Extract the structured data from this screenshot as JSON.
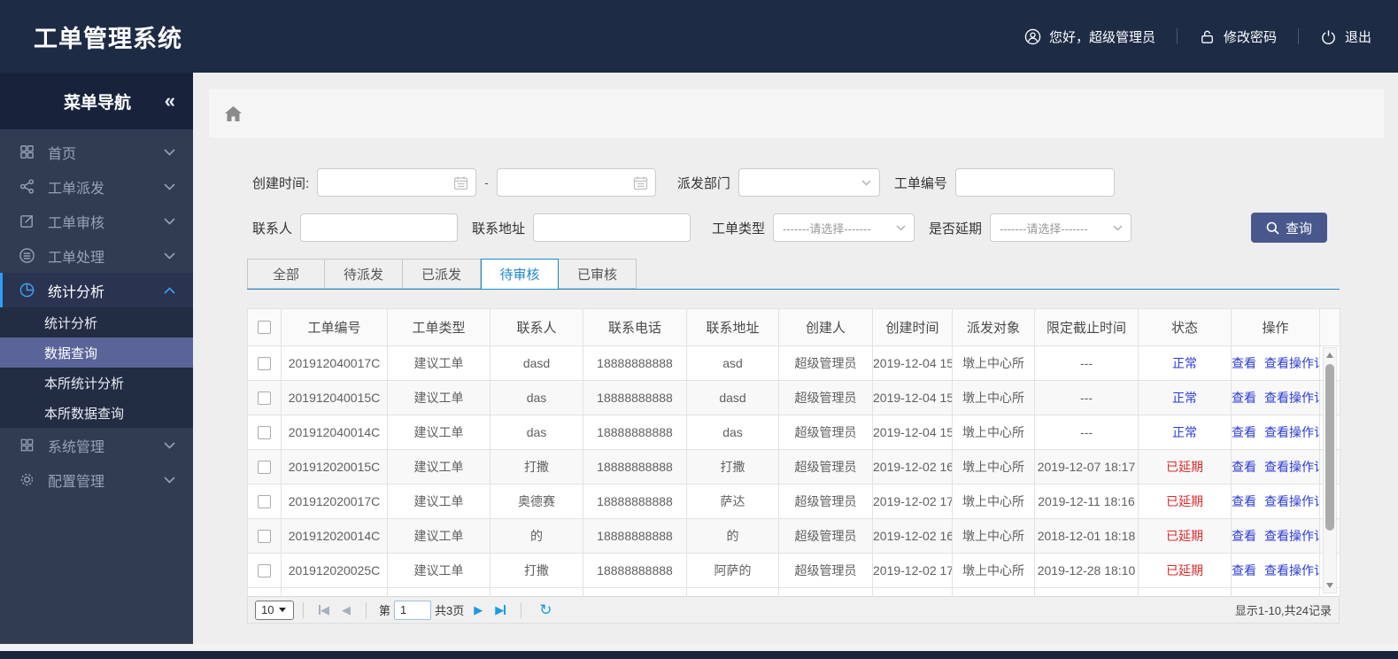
{
  "app": {
    "title": "工单管理系统"
  },
  "header": {
    "greeting": "您好，超级管理员",
    "change_password": "修改密码",
    "logout": "退出"
  },
  "sidebar": {
    "title": "菜单导航",
    "collapse_icon": "«",
    "items": [
      {
        "label": "首页"
      },
      {
        "label": "工单派发"
      },
      {
        "label": "工单审核"
      },
      {
        "label": "工单处理"
      },
      {
        "label": "统计分析",
        "active": true
      },
      {
        "label": "系统管理"
      },
      {
        "label": "配置管理"
      }
    ],
    "submenu": [
      {
        "label": "统计分析",
        "selected": false
      },
      {
        "label": "数据查询",
        "selected": true
      },
      {
        "label": "本所统计分析",
        "selected": false
      },
      {
        "label": "本所数据查询",
        "selected": false
      }
    ]
  },
  "filters": {
    "create_time_label": "创建时间:",
    "range_separator": "-",
    "dispatch_dept_label": "派发部门",
    "order_no_label": "工单编号",
    "contact_label": "联系人",
    "address_label": "联系地址",
    "order_type_label": "工单类型",
    "delay_label": "是否延期",
    "select_placeholder": "-------请选择-------",
    "search_button": "查询"
  },
  "tabs": [
    {
      "label": "全部",
      "active": false
    },
    {
      "label": "待派发",
      "active": false
    },
    {
      "label": "已派发",
      "active": false
    },
    {
      "label": "待审核",
      "active": true
    },
    {
      "label": "已审核",
      "active": false
    }
  ],
  "table": {
    "columns": [
      "工单编号",
      "工单类型",
      "联系人",
      "联系电话",
      "联系地址",
      "创建人",
      "创建时间",
      "派发对象",
      "限定截止时间",
      "状态",
      "操作"
    ],
    "action_labels": [
      "查看",
      "查看操作记录"
    ],
    "rows": [
      {
        "order_no": "201912040017C",
        "order_type": "建议工单",
        "contact": "dasd",
        "phone": "18888888888",
        "address": "asd",
        "creator": "超级管理员",
        "created": "2019-12-04 15",
        "target": "墩上中心所",
        "deadline": "---",
        "status": "正常",
        "status_type": "normal"
      },
      {
        "order_no": "201912040015C",
        "order_type": "建议工单",
        "contact": "das",
        "phone": "18888888888",
        "address": "dasd",
        "creator": "超级管理员",
        "created": "2019-12-04 15",
        "target": "墩上中心所",
        "deadline": "---",
        "status": "正常",
        "status_type": "normal"
      },
      {
        "order_no": "201912040014C",
        "order_type": "建议工单",
        "contact": "das",
        "phone": "18888888888",
        "address": "das",
        "creator": "超级管理员",
        "created": "2019-12-04 15",
        "target": "墩上中心所",
        "deadline": "---",
        "status": "正常",
        "status_type": "normal"
      },
      {
        "order_no": "201912020015C",
        "order_type": "建议工单",
        "contact": "打撒",
        "phone": "18888888888",
        "address": "打撒",
        "creator": "超级管理员",
        "created": "2019-12-02 16",
        "target": "墩上中心所",
        "deadline": "2019-12-07 18:17",
        "status": "已延期",
        "status_type": "delayed"
      },
      {
        "order_no": "201912020017C",
        "order_type": "建议工单",
        "contact": "奥德赛",
        "phone": "18888888888",
        "address": "萨达",
        "creator": "超级管理员",
        "created": "2019-12-02 17",
        "target": "墩上中心所",
        "deadline": "2019-12-11 18:16",
        "status": "已延期",
        "status_type": "delayed"
      },
      {
        "order_no": "201912020014C",
        "order_type": "建议工单",
        "contact": "的",
        "phone": "18888888888",
        "address": "的",
        "creator": "超级管理员",
        "created": "2019-12-02 16",
        "target": "墩上中心所",
        "deadline": "2018-12-01 18:18",
        "status": "已延期",
        "status_type": "delayed"
      },
      {
        "order_no": "201912020025C",
        "order_type": "建议工单",
        "contact": "打撒",
        "phone": "18888888888",
        "address": "阿萨的",
        "creator": "超级管理员",
        "created": "2019-12-02 17",
        "target": "墩上中心所",
        "deadline": "2019-12-28 18:10",
        "status": "已延期",
        "status_type": "delayed"
      }
    ]
  },
  "pagination": {
    "page_size": "10",
    "page_prefix": "第",
    "current_page": "1",
    "total_pages": "共3页",
    "summary": "显示1-10,共24记录"
  },
  "colors": {
    "header_bg": "#1d2b45",
    "sidebar_selected": "#5a6499",
    "accent_blue": "#1e88c5",
    "link_blue": "#2b3cd5",
    "status_red": "#e02a2a",
    "button_bg": "#49588c"
  }
}
